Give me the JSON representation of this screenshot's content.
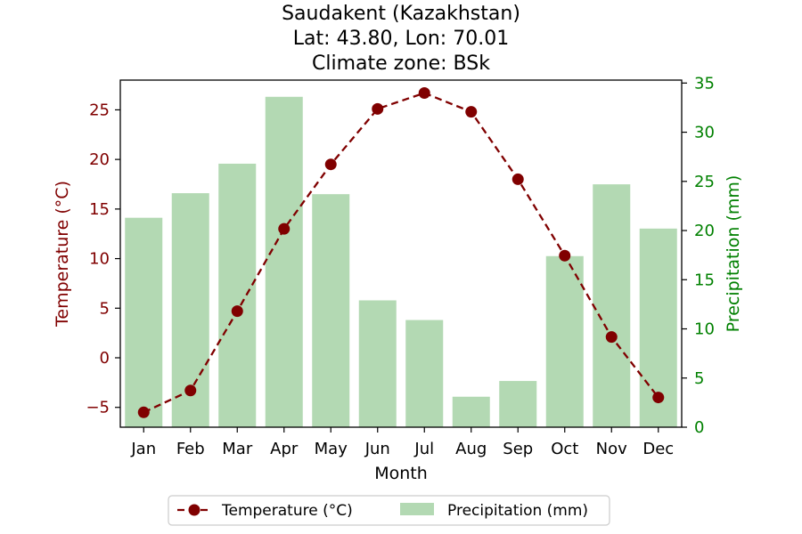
{
  "chart_data": {
    "type": "bar+line",
    "title": [
      "Saudakent (Kazakhstan)",
      "Lat: 43.80, Lon: 70.01",
      "Climate zone: BSk"
    ],
    "xlabel": "Month",
    "categories": [
      "Jan",
      "Feb",
      "Mar",
      "Apr",
      "May",
      "Jun",
      "Jul",
      "Aug",
      "Sep",
      "Oct",
      "Nov",
      "Dec"
    ],
    "temperature": {
      "name": "Temperature (°C)",
      "axis": "left",
      "ylabel": "Temperature (°C)",
      "ylim": [
        -7,
        28
      ],
      "ticks": [
        -5,
        0,
        5,
        10,
        15,
        20,
        25
      ],
      "values": [
        -5.5,
        -3.3,
        4.7,
        13.0,
        19.5,
        25.1,
        26.7,
        24.8,
        18.0,
        10.3,
        2.1,
        -4.0
      ],
      "color": "#800000"
    },
    "precipitation": {
      "name": "Precipitation (mm)",
      "axis": "right",
      "ylabel": "Precipitation (mm)",
      "ylim": [
        0,
        35.3
      ],
      "ticks": [
        0,
        5,
        10,
        15,
        20,
        25,
        30,
        35
      ],
      "values": [
        21.3,
        23.8,
        26.8,
        33.6,
        23.7,
        12.9,
        10.9,
        3.1,
        4.7,
        17.4,
        24.7,
        20.2
      ],
      "color": "#b3d9b3",
      "tick_color": "#008000"
    },
    "legend": {
      "placement": "bottom-center"
    },
    "grid": false
  }
}
